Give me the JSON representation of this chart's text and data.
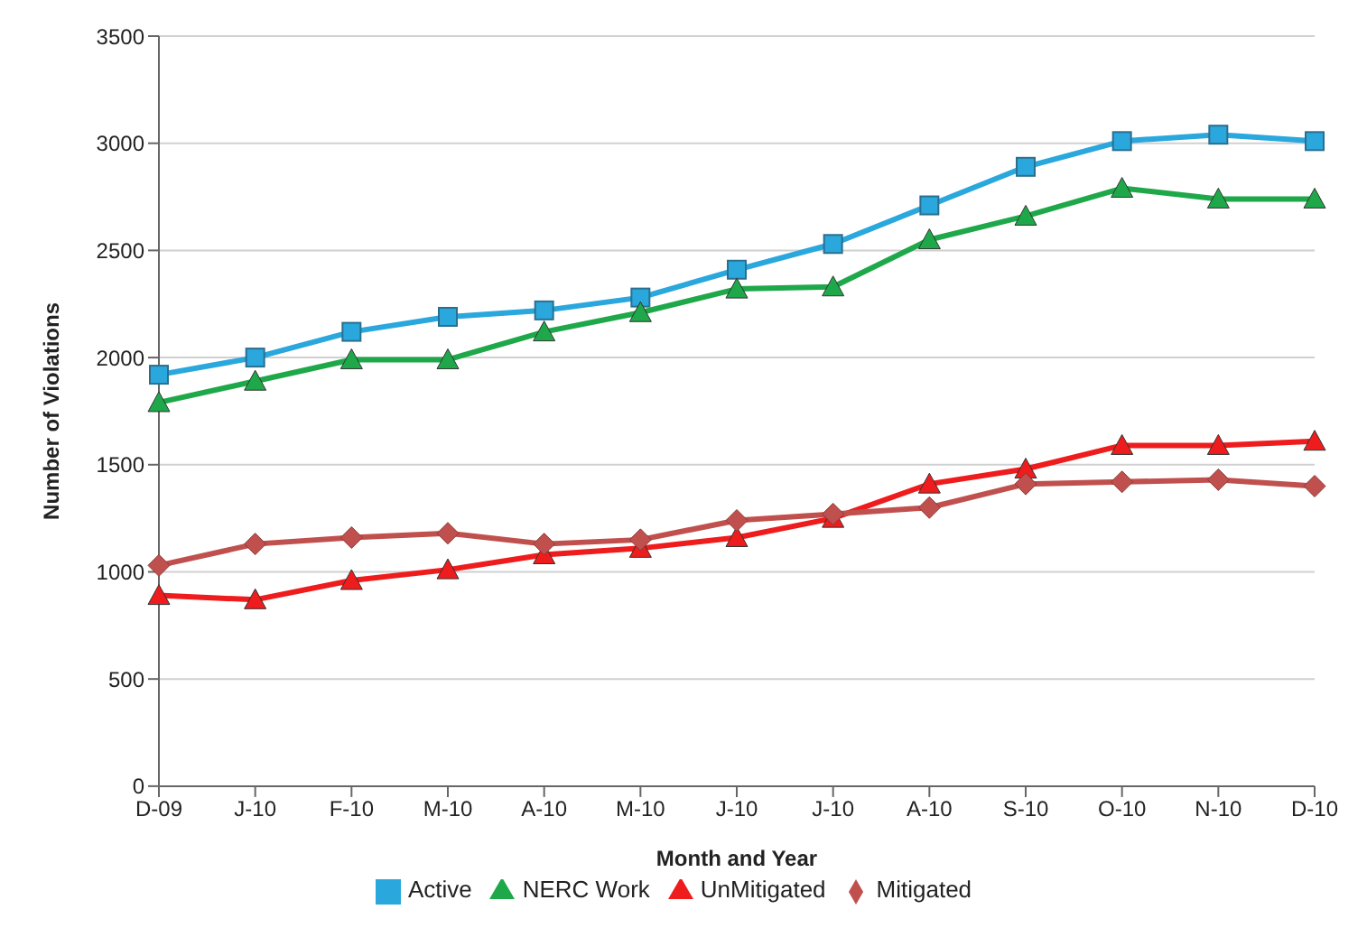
{
  "chart_data": {
    "type": "line",
    "xlabel": "Month and Year",
    "ylabel": "Number of Violations",
    "categories": [
      "D-09",
      "J-10",
      "F-10",
      "M-10",
      "A-10",
      "M-10",
      "J-10",
      "J-10",
      "A-10",
      "S-10",
      "O-10",
      "N-10",
      "D-10"
    ],
    "series": [
      {
        "name": "Active",
        "color": "#2aa7dc",
        "marker": "square",
        "values": [
          1920,
          2000,
          2120,
          2190,
          2220,
          2280,
          2410,
          2530,
          2710,
          2890,
          3010,
          3040,
          3010
        ]
      },
      {
        "name": "NERC Work",
        "color": "#1fa84a",
        "marker": "triangle",
        "values": [
          1790,
          1890,
          1990,
          1990,
          2120,
          2210,
          2320,
          2330,
          2550,
          2660,
          2790,
          2740,
          2740
        ]
      },
      {
        "name": "UnMitigated",
        "color": "#ee1c1c",
        "marker": "triangle",
        "values": [
          890,
          870,
          960,
          1010,
          1080,
          1110,
          1160,
          1250,
          1410,
          1480,
          1590,
          1590,
          1610
        ]
      },
      {
        "name": "Mitigated",
        "color": "#c0504d",
        "marker": "diamond",
        "values": [
          1030,
          1130,
          1160,
          1180,
          1130,
          1150,
          1240,
          1270,
          1300,
          1410,
          1420,
          1430,
          1400
        ]
      }
    ],
    "ylim": [
      0,
      3500
    ],
    "yticks": [
      0,
      500,
      1000,
      1500,
      2000,
      2500,
      3000,
      3500
    ],
    "grid": "y",
    "legend": "bottom"
  }
}
